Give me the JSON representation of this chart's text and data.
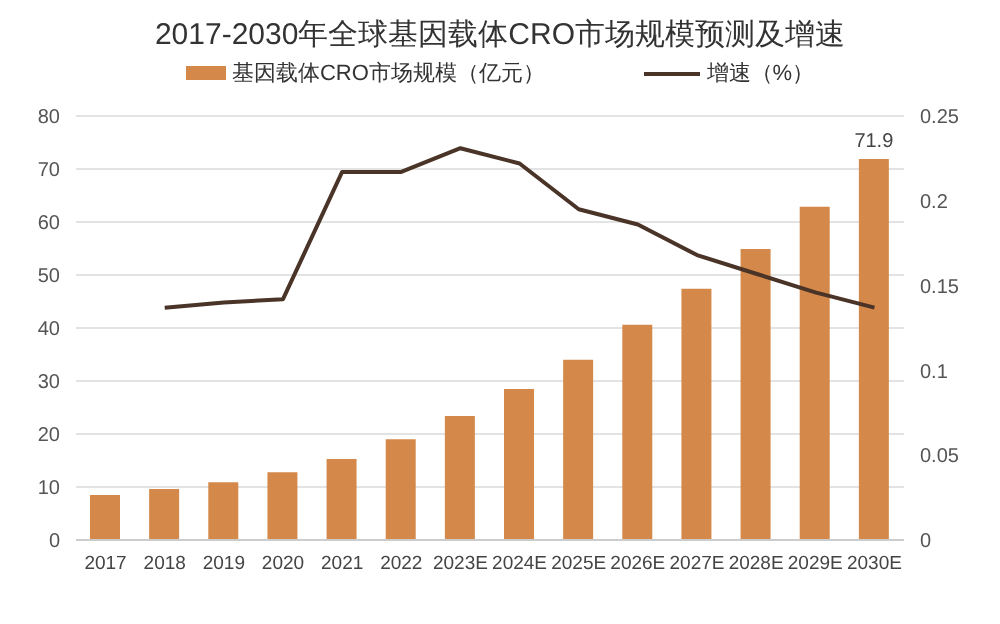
{
  "chart_data": {
    "type": "bar",
    "title": "2017-2030年全球基因载体CRO市场规模预测及增速",
    "categories": [
      "2017",
      "2018",
      "2019",
      "2020",
      "2021",
      "2022",
      "2023E",
      "2024E",
      "2025E",
      "2026E",
      "2027E",
      "2028E",
      "2029E",
      "2030E"
    ],
    "series": [
      {
        "name": "基因载体CRO市场规模（亿元）",
        "color": "#d4894a",
        "values": [
          8.5,
          9.6,
          10.9,
          12.8,
          15.3,
          19.0,
          23.4,
          28.5,
          34.0,
          40.6,
          47.4,
          54.9,
          62.9,
          71.9
        ],
        "value_labels": [
          null,
          null,
          null,
          null,
          null,
          null,
          null,
          null,
          null,
          null,
          null,
          null,
          null,
          "71.9"
        ]
      },
      {
        "name": "增速（%）",
        "type": "line",
        "axis": "y2",
        "color": "#4a3428",
        "values": [
          null,
          0.137,
          0.14,
          0.142,
          0.217,
          0.217,
          0.231,
          0.222,
          0.195,
          0.186,
          0.168,
          0.157,
          0.146,
          0.137
        ]
      }
    ],
    "ylim": [
      0,
      80
    ],
    "yticks": [
      0,
      10,
      20,
      30,
      40,
      50,
      60,
      70,
      80
    ],
    "y2lim": [
      0,
      0.25
    ],
    "y2ticks": [
      0,
      0.05,
      0.1,
      0.15,
      0.2,
      0.25
    ],
    "grid": "y",
    "legend": "top",
    "marker": "none"
  }
}
